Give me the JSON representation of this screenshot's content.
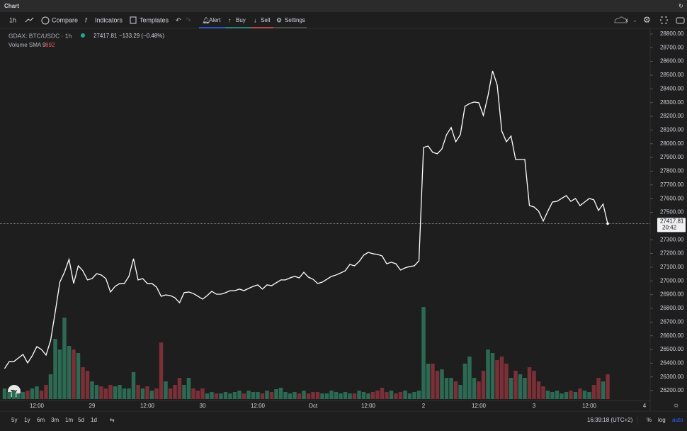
{
  "tab": "Chart",
  "toolbar": {
    "interval": "1h",
    "compare": "Compare",
    "indicators": "Indicators",
    "templates": "Templates",
    "alert": "Alert",
    "buy": "Buy",
    "sell": "Sell",
    "settings": "Settings",
    "x": "x"
  },
  "legend": {
    "symbol": "GDAX: BTC/USDC · 1h",
    "change": "−133.29 (−0.48%)",
    "volume_study": "Volume SMA 9",
    "volume_sma": 892
  },
  "ranges": [
    "5y",
    "1y",
    "6m",
    "3m",
    "1m",
    "5d",
    "1d"
  ],
  "clock": "16:39:18 (UTC+2)",
  "scale_buttons": [
    "%",
    "log",
    "auto"
  ],
  "chart_data": {
    "type": "line",
    "categories": [
      null,
      null,
      null,
      null,
      null,
      null,
      null,
      "12:00",
      null,
      null,
      null,
      null,
      null,
      null,
      null,
      null,
      null,
      null,
      null,
      "29",
      null,
      null,
      null,
      null,
      null,
      null,
      null,
      null,
      null,
      null,
      null,
      "12:00",
      null,
      null,
      null,
      null,
      null,
      null,
      null,
      null,
      null,
      null,
      null,
      "30",
      null,
      null,
      null,
      null,
      null,
      null,
      null,
      null,
      null,
      null,
      null,
      "12:00",
      null,
      null,
      null,
      null,
      null,
      null,
      null,
      null,
      null,
      null,
      null,
      "Oct",
      null,
      null,
      null,
      null,
      null,
      null,
      null,
      null,
      null,
      null,
      null,
      "12:00",
      null,
      null,
      null,
      null,
      null,
      null,
      null,
      null,
      null,
      null,
      null,
      "2",
      null,
      null,
      null,
      null,
      null,
      null,
      null,
      null,
      null,
      null,
      null,
      "12:00",
      null,
      null,
      null,
      null,
      null,
      null,
      null,
      null,
      null,
      null,
      null,
      "3",
      null,
      null,
      null,
      null,
      null,
      null,
      null,
      null,
      null,
      null,
      null,
      "12:00",
      null,
      null,
      null,
      null,
      null,
      null,
      null,
      null,
      null,
      null,
      null,
      "4"
    ],
    "series": [
      {
        "name": "GDAX: BTC/USDC · 1h",
        "type": "line",
        "color": "#ffffff",
        "last_time": "20:42",
        "values": [
          26361,
          26412,
          26412,
          26438,
          26464,
          26402,
          26454,
          26521,
          26500,
          26459,
          26567,
          26774,
          26991,
          27063,
          27157,
          26981,
          27110,
          27074,
          27007,
          27017,
          27053,
          27043,
          27017,
          26919,
          26960,
          26981,
          26981,
          27033,
          27162,
          27007,
          27017,
          26981,
          26981,
          26955,
          26888,
          26898,
          26893,
          26877,
          26841,
          26914,
          26919,
          26908,
          26888,
          26867,
          26893,
          26924,
          26903,
          26903,
          26914,
          26929,
          26929,
          26940,
          26929,
          26945,
          26960,
          26971,
          26940,
          26971,
          26965,
          26986,
          27007,
          27007,
          27022,
          27033,
          27022,
          27063,
          27027,
          27012,
          26981,
          26991,
          27012,
          27033,
          27043,
          27058,
          27074,
          27120,
          27110,
          27141,
          27188,
          27208,
          27198,
          27193,
          27182,
          27125,
          27136,
          27125,
          27079,
          27095,
          27105,
          27110,
          27146,
          27973,
          27983,
          27937,
          27927,
          27963,
          28066,
          28118,
          28014,
          28066,
          28273,
          28293,
          28304,
          28299,
          28206,
          28350,
          28531,
          28428,
          28092,
          28014,
          28056,
          27885,
          27885,
          27885,
          27549,
          27539,
          27508,
          27436,
          27508,
          27575,
          27580,
          27601,
          27622,
          27580,
          27601,
          27549,
          27575,
          27601,
          27591,
          27513,
          27560,
          27417.81,
          null,
          null,
          null,
          null,
          null,
          null,
          null,
          null
        ]
      },
      {
        "name": "Volume SMA 9",
        "type": "bar",
        "axis": "y2",
        "up_color": "#2d6a54",
        "down_color": "#7b2f37",
        "values": [
          450,
          300,
          360,
          240,
          300,
          360,
          450,
          540,
          360,
          600,
          1050,
          2550,
          2100,
          3450,
          2250,
          2100,
          1950,
          1350,
          1200,
          750,
          600,
          540,
          450,
          600,
          540,
          600,
          450,
          450,
          1140,
          600,
          450,
          540,
          360,
          450,
          2400,
          750,
          450,
          600,
          900,
          600,
          900,
          450,
          360,
          450,
          240,
          300,
          240,
          240,
          300,
          240,
          300,
          360,
          240,
          360,
          300,
          300,
          240,
          360,
          300,
          420,
          480,
          300,
          240,
          300,
          240,
          360,
          240,
          300,
          300,
          240,
          240,
          360,
          300,
          240,
          300,
          240,
          240,
          360,
          300,
          240,
          300,
          360,
          480,
          300,
          360,
          240,
          300,
          360,
          240,
          300,
          360,
          3900,
          1500,
          1500,
          1200,
          1260,
          900,
          900,
          750,
          600,
          1500,
          1800,
          900,
          750,
          1200,
          2100,
          1950,
          1650,
          1800,
          1500,
          900,
          1200,
          1050,
          900,
          1350,
          1200,
          750,
          540,
          360,
          300,
          360,
          240,
          300,
          360,
          300,
          450,
          360,
          300,
          600,
          900,
          750,
          1050,
          null,
          null,
          null,
          null,
          null,
          null,
          null,
          null
        ]
      }
    ],
    "ylim": [
      26128,
      28841
    ],
    "yticks": [
      {
        "value": 28800,
        "label": "28800.00"
      },
      {
        "value": 28700,
        "label": "28700.00"
      },
      {
        "value": 28600,
        "label": "28600.00"
      },
      {
        "value": 28500,
        "label": "28500.00"
      },
      {
        "value": 28400,
        "label": "28400.00"
      },
      {
        "value": 28300,
        "label": "28300.00"
      },
      {
        "value": 28200,
        "label": "28200.00"
      },
      {
        "value": 28100,
        "label": "28100.00"
      },
      {
        "value": 28000,
        "label": "28000.00"
      },
      {
        "value": 27900,
        "label": "27900.00"
      },
      {
        "value": 27800,
        "label": "27800.00"
      },
      {
        "value": 27700,
        "label": "27700.00"
      },
      {
        "value": 27600,
        "label": "27600.00"
      },
      {
        "value": 27500,
        "label": "27500.00"
      },
      {
        "value": 27300,
        "label": "27300.00"
      },
      {
        "value": 27200,
        "label": "27200.00"
      },
      {
        "value": 27100,
        "label": "27100.00"
      },
      {
        "value": 27000,
        "label": "27000.00"
      },
      {
        "value": 26900,
        "label": "26900.00"
      },
      {
        "value": 26800,
        "label": "26800.00"
      },
      {
        "value": 26700,
        "label": "26700.00"
      },
      {
        "value": 26600,
        "label": "26600.00"
      },
      {
        "value": 26500,
        "label": "26500.00"
      },
      {
        "value": 26400,
        "label": "26400.00"
      },
      {
        "value": 26300,
        "label": "26300.00"
      },
      {
        "value": 26200,
        "label": "26200.00"
      }
    ],
    "y2lim": [
      0,
      15700
    ],
    "grid": false
  }
}
